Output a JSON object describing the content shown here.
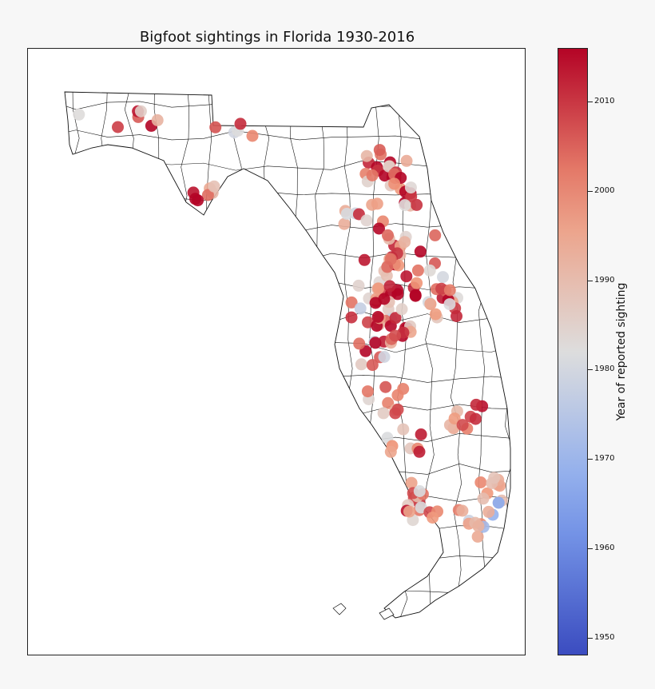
{
  "title": "Bigfoot sightings in Florida 1930-2016",
  "colorbar": {
    "label": "Year of reported sighting",
    "min": 1948,
    "max": 2016,
    "ticks": [
      1950,
      1960,
      1970,
      1980,
      1990,
      2000,
      2010
    ],
    "colormap": "coolwarm",
    "colors": {
      "low": "#3b4cc0",
      "mid": "#dddddd",
      "high": "#b40426"
    }
  },
  "map": {
    "region": "Florida",
    "boundaries": "county outlines",
    "sightings_year_range": [
      1948,
      2016
    ]
  }
}
